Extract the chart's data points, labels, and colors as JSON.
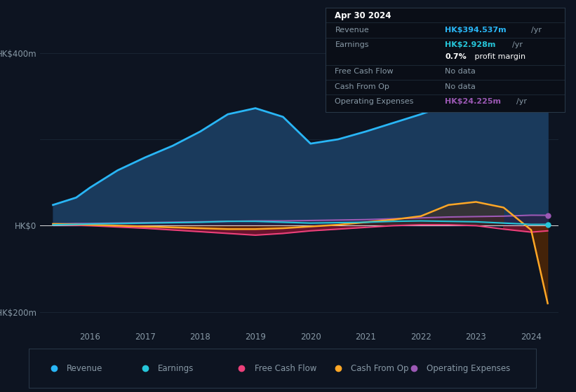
{
  "bg_color": "#0d1421",
  "plot_bg_color": "#0d1421",
  "ylim": [
    -240,
    450
  ],
  "years": [
    2015.33,
    2015.75,
    2016.0,
    2016.5,
    2017.0,
    2017.5,
    2018.0,
    2018.5,
    2019.0,
    2019.5,
    2020.0,
    2020.5,
    2021.0,
    2021.5,
    2022.0,
    2022.5,
    2023.0,
    2023.5,
    2024.0,
    2024.3
  ],
  "revenue": [
    48,
    65,
    88,
    128,
    158,
    185,
    218,
    258,
    272,
    252,
    190,
    200,
    218,
    238,
    258,
    280,
    295,
    338,
    394,
    395
  ],
  "earnings": [
    2,
    3,
    4,
    5,
    6,
    7,
    8,
    10,
    10,
    8,
    6,
    7,
    8,
    10,
    11,
    10,
    9,
    6,
    2.928,
    3
  ],
  "free_cash_flow": [
    2,
    1,
    0,
    -3,
    -6,
    -10,
    -14,
    -18,
    -22,
    -18,
    -12,
    -8,
    -4,
    0,
    2,
    2,
    0,
    -8,
    -15,
    -12
  ],
  "cash_from_op": [
    4,
    3,
    2,
    0,
    -2,
    -4,
    -6,
    -8,
    -8,
    -6,
    -2,
    2,
    8,
    14,
    22,
    48,
    55,
    42,
    -10,
    -180
  ],
  "operating_expenses": [
    4,
    5,
    5,
    6,
    7,
    8,
    9,
    10,
    11,
    11,
    12,
    13,
    14,
    16,
    18,
    20,
    21,
    22,
    24.225,
    24
  ],
  "revenue_color": "#29b6f6",
  "revenue_fill_color": "#1a3a5c",
  "earnings_color": "#26c6da",
  "free_cash_flow_color": "#ec407a",
  "free_cash_flow_fill_color": "#7a1530",
  "cash_from_op_color": "#ffa726",
  "cash_from_op_fill_color": "#5c2a00",
  "operating_expenses_color": "#9c59b5",
  "operating_expenses_fill_color": "#2e1a40",
  "grid_color": "#1e2d3d",
  "zero_line_color": "#e0e0e0",
  "text_color": "#8899a6",
  "tooltip_bg": "#0a0e17",
  "tooltip_border": "#2a3a4a",
  "legend_bg": "#0a0e17",
  "legend_border": "#2a3a4a",
  "xlim": [
    2015.1,
    2024.5
  ],
  "xticks": [
    2016,
    2017,
    2018,
    2019,
    2020,
    2021,
    2022,
    2023,
    2024
  ],
  "yticks_labels": [
    "HK$400m",
    "HK$0",
    "-HK$200m"
  ],
  "yticks_values": [
    400,
    0,
    -200
  ],
  "tooltip": {
    "date": "Apr 30 2024",
    "revenue_val": "HK$394.537m",
    "revenue_color": "#29b6f6",
    "earnings_val": "HK$2.928m",
    "earnings_color": "#26c6da",
    "profit_margin": "0.7%",
    "free_cash_flow_val": "No data",
    "cash_from_op_val": "No data",
    "op_expenses_val": "HK$24.225m",
    "op_expenses_color": "#9c59b5"
  },
  "legend_items": [
    {
      "label": "Revenue",
      "color": "#29b6f6"
    },
    {
      "label": "Earnings",
      "color": "#26c6da"
    },
    {
      "label": "Free Cash Flow",
      "color": "#ec407a"
    },
    {
      "label": "Cash From Op",
      "color": "#ffa726"
    },
    {
      "label": "Operating Expenses",
      "color": "#9c59b5"
    }
  ]
}
